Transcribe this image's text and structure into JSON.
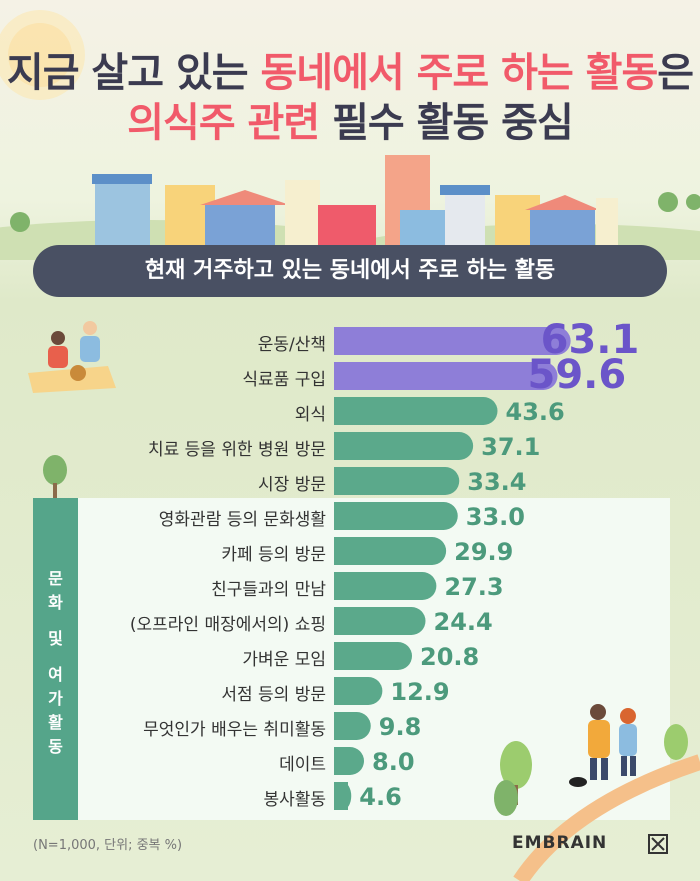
{
  "title": {
    "line1_part1": "지금 살고 있는",
    "line1_highlight": "동네에서 주로 하는 활동",
    "line1_part2": "은",
    "line2_highlight": "의식주 관련",
    "line2_part2": "필수 활동 중심"
  },
  "banner": "현재 거주하고 있는 동네에서 주로 하는 활동",
  "sidebar_label": [
    "문",
    "화",
    "및",
    "여",
    "가",
    "활",
    "동"
  ],
  "footnote": "(N=1,000, 단위; 중복 %)",
  "brand": "EMBRAIN",
  "colors": {
    "top_bar": "#8e7ed8",
    "other_bar": "#5ba98b",
    "top_value": "#6b55c9",
    "other_value": "#4c9a7c",
    "title_accent": "#f15a6a",
    "banner": "#495063"
  },
  "chart_data": {
    "type": "bar",
    "orientation": "horizontal",
    "categories": [
      "운동/산책",
      "식료품 구입",
      "외식",
      "치료 등을 위한 병원 방문",
      "시장 방문",
      "영화관람 등의 문화생활",
      "카페 등의 방문",
      "친구들과의 만남",
      "(오프라인 매장에서의) 쇼핑",
      "가벼운 모임",
      "서점 등의 방문",
      "무엇인가 배우는 취미활동",
      "데이트",
      "봉사활동"
    ],
    "values": [
      63.1,
      59.6,
      43.6,
      37.1,
      33.4,
      33.0,
      29.9,
      27.3,
      24.4,
      20.8,
      12.9,
      9.8,
      8.0,
      4.6
    ],
    "value_labels": [
      "63.1",
      "59.6",
      "43.6",
      "37.1",
      "33.4",
      "33.0",
      "29.9",
      "27.3",
      "24.4",
      "20.8",
      "12.9",
      "9.8",
      "8.0",
      "4.6"
    ],
    "highlight_top": 2
  }
}
